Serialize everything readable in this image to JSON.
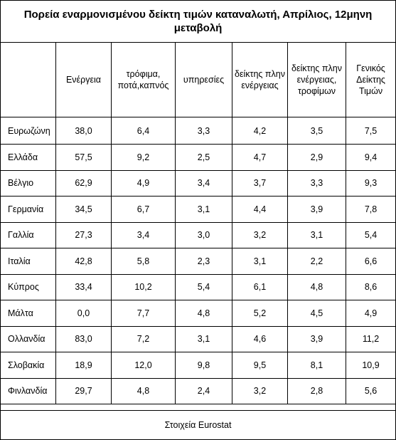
{
  "title": "Πορεία εναρμονισμένου δείκτη τιμών καταναλωτή, Απρίλιος, 12μηνη μεταβολή",
  "columns": [
    "",
    "Ενέργεια",
    "τρόφιμα, ποτά,καπνός",
    "υπηρεσίες",
    "δείκτης πλην ενέργειας",
    "δείκτης πλην ενέργειας, τροφίμων",
    "Γενικός Δείκτης Τιμών"
  ],
  "rows": [
    {
      "country": "Ευρωζώνη",
      "bold": true,
      "values": [
        "38,0",
        "6,4",
        "3,3",
        "4,2",
        "3,5",
        "7,5"
      ]
    },
    {
      "country": "Ελλάδα",
      "bold": true,
      "values": [
        "57,5",
        "9,2",
        "2,5",
        "4,7",
        "2,9",
        "9,4"
      ]
    },
    {
      "country": "Βέλγιο",
      "bold": false,
      "values": [
        "62,9",
        "4,9",
        "3,4",
        "3,7",
        "3,3",
        "9,3"
      ]
    },
    {
      "country": "Γερμανία",
      "bold": false,
      "values": [
        "34,5",
        "6,7",
        "3,1",
        "4,4",
        "3,9",
        "7,8"
      ]
    },
    {
      "country": "Γαλλία",
      "bold": false,
      "values": [
        "27,3",
        "3,4",
        "3,0",
        "3,2",
        "3,1",
        "5,4"
      ]
    },
    {
      "country": "Ιταλία",
      "bold": false,
      "values": [
        "42,8",
        "5,8",
        "2,3",
        "3,1",
        "2,2",
        "6,6"
      ]
    },
    {
      "country": "Κύπρος",
      "bold": false,
      "values": [
        "33,4",
        "10,2",
        "5,4",
        "6,1",
        "4,8",
        "8,6"
      ]
    },
    {
      "country": "Μάλτα",
      "bold": false,
      "values": [
        "0,0",
        "7,7",
        "4,8",
        "5,2",
        "4,5",
        "4,9"
      ]
    },
    {
      "country": "Ολλανδία",
      "bold": false,
      "values": [
        "83,0",
        "7,2",
        "3,1",
        "4,6",
        "3,9",
        "11,2"
      ]
    },
    {
      "country": "Σλοβακία",
      "bold": false,
      "values": [
        "18,9",
        "12,0",
        "9,8",
        "9,5",
        "8,1",
        "10,9"
      ]
    },
    {
      "country": "Φινλανδία",
      "bold": false,
      "values": [
        "29,7",
        "4,8",
        "2,4",
        "3,2",
        "2,8",
        "5,6"
      ]
    }
  ],
  "source": "Στοιχεία Eurostat"
}
